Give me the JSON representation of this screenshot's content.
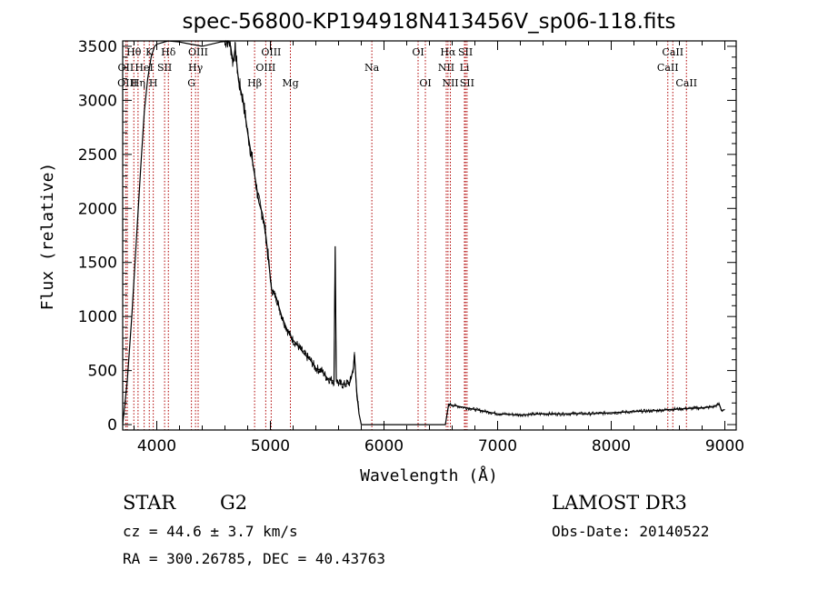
{
  "chart_data": {
    "type": "line",
    "title": "spec-56800-KP194918N413456V_sp06-118.fits",
    "xlabel": "Wavelength (Å)",
    "ylabel": "Flux (relative)",
    "xlim": [
      3700,
      9100
    ],
    "ylim": [
      -50,
      3550
    ],
    "xticks": [
      4000,
      5000,
      6000,
      7000,
      8000,
      9000
    ],
    "yticks": [
      0,
      500,
      1000,
      1500,
      2000,
      2500,
      3000,
      3500
    ],
    "xtick_labels": [
      "4000",
      "5000",
      "6000",
      "7000",
      "8000",
      "9000"
    ],
    "ytick_labels": [
      "0",
      "500",
      "1000",
      "1500",
      "2000",
      "2500",
      "3000",
      "3500"
    ],
    "series": [
      {
        "name": "flux",
        "x": [
          3700,
          3740,
          3780,
          3820,
          3860,
          3890,
          3920,
          3950,
          3980,
          4000,
          4100,
          4200,
          4300,
          4400,
          4480,
          4560,
          4600,
          4630,
          4650,
          4670,
          4690,
          4720,
          4760,
          4800,
          4840,
          4870,
          4900,
          4930,
          4960,
          4990,
          5010,
          5050,
          5100,
          5150,
          5200,
          5250,
          5300,
          5350,
          5400,
          5450,
          5500,
          5560,
          5570,
          5580,
          5600,
          5650,
          5700,
          5730,
          5740,
          5760,
          5780,
          5800,
          5850,
          5900,
          5950,
          6000,
          6100,
          6200,
          6300,
          6400,
          6500,
          6540,
          6560,
          6570,
          6600,
          6700,
          6800,
          6900,
          7000,
          7100,
          7200,
          7300,
          7400,
          7500,
          7600,
          7700,
          7800,
          7900,
          8000,
          8100,
          8200,
          8300,
          8400,
          8500,
          8600,
          8700,
          8800,
          8900,
          8950,
          8970,
          9000
        ],
        "y": [
          0,
          400,
          1000,
          1700,
          2400,
          2900,
          3200,
          3400,
          3500,
          3520,
          3560,
          3540,
          3520,
          3500,
          3520,
          3540,
          3545,
          3560,
          3500,
          3350,
          3480,
          3180,
          3000,
          2700,
          2450,
          2250,
          2050,
          1950,
          1750,
          1450,
          1250,
          1180,
          1000,
          870,
          780,
          720,
          650,
          600,
          520,
          500,
          430,
          400,
          1650,
          420,
          380,
          370,
          390,
          520,
          650,
          300,
          100,
          0,
          0,
          0,
          0,
          0,
          0,
          0,
          0,
          0,
          0,
          0,
          130,
          190,
          180,
          160,
          140,
          120,
          100,
          95,
          90,
          95,
          100,
          98,
          100,
          102,
          100,
          105,
          110,
          115,
          120,
          125,
          130,
          138,
          145,
          150,
          155,
          165,
          190,
          130,
          140
        ]
      }
    ],
    "line_markers": [
      {
        "label": "Hθ",
        "x": 3798,
        "row": 0
      },
      {
        "label": "OII",
        "x": 3727,
        "row": 1
      },
      {
        "label": "OIII",
        "x": 3741,
        "row": 2
      },
      {
        "label": "Hη",
        "x": 3835,
        "row": 2
      },
      {
        "label": "HeI",
        "x": 3889,
        "row": 1
      },
      {
        "label": "K",
        "x": 3934,
        "row": 0
      },
      {
        "label": "H",
        "x": 3969,
        "row": 2
      },
      {
        "label": "Hδ",
        "x": 4102,
        "row": 0
      },
      {
        "label": "SII",
        "x": 4069,
        "row": 1
      },
      {
        "label": "OIII",
        "x": 4364,
        "row": 0
      },
      {
        "label": "Hγ",
        "x": 4341,
        "row": 1
      },
      {
        "label": "G",
        "x": 4305,
        "row": 2
      },
      {
        "label": "Hβ",
        "x": 4861,
        "row": 2
      },
      {
        "label": "OIII",
        "x": 5007,
        "row": 0
      },
      {
        "label": "OIII",
        "x": 4959,
        "row": 1
      },
      {
        "label": "Mg",
        "x": 5176,
        "row": 2
      },
      {
        "label": "Na",
        "x": 5893,
        "row": 1
      },
      {
        "label": "OI",
        "x": 6300,
        "row": 0
      },
      {
        "label": "OI",
        "x": 6364,
        "row": 2
      },
      {
        "label": "Hα",
        "x": 6563,
        "row": 0
      },
      {
        "label": "NII",
        "x": 6548,
        "row": 1
      },
      {
        "label": "NII",
        "x": 6584,
        "row": 2
      },
      {
        "label": "SII",
        "x": 6717,
        "row": 0
      },
      {
        "label": "Li",
        "x": 6708,
        "row": 1
      },
      {
        "label": "SII",
        "x": 6731,
        "row": 2
      },
      {
        "label": "CaII",
        "x": 8542,
        "row": 0
      },
      {
        "label": "CaII",
        "x": 8498,
        "row": 1
      },
      {
        "label": "CaII",
        "x": 8662,
        "row": 2
      }
    ]
  },
  "info": {
    "object_class": "STAR",
    "subclass": "G2",
    "survey": "LAMOST DR3",
    "cz": "cz = 44.6 ± 3.7 km/s",
    "obs_date": "Obs-Date: 20140522",
    "coords": "RA = 300.26785, DEC =  40.43763"
  },
  "colors": {
    "spectrum": "#000000",
    "line_marker": "#b00000",
    "axes": "#000000"
  }
}
